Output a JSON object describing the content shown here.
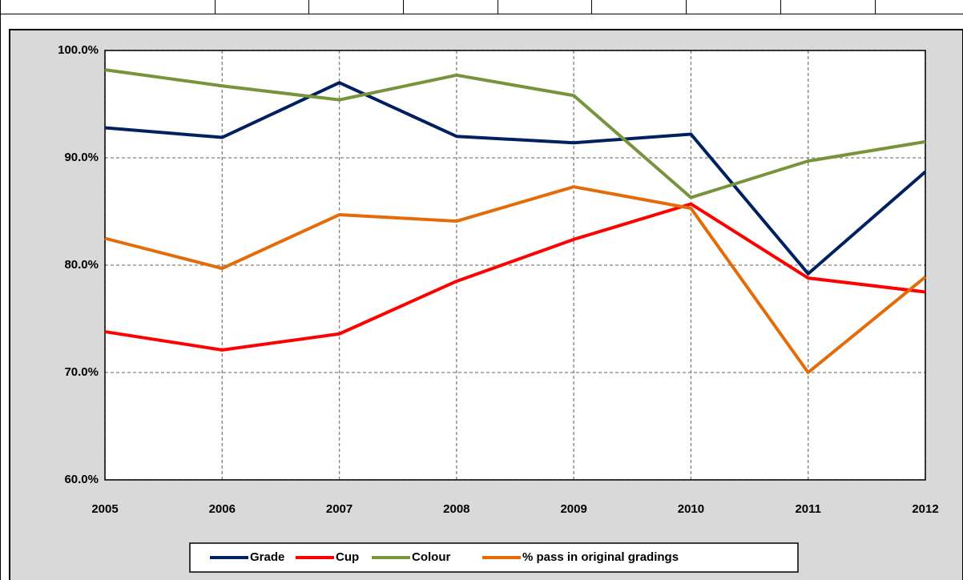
{
  "chart_data": {
    "type": "line",
    "x": [
      2005,
      2006,
      2007,
      2008,
      2009,
      2010,
      2011,
      2012
    ],
    "xlim": [
      2005,
      2012
    ],
    "xticks": [
      2005,
      2006,
      2007,
      2008,
      2009,
      2010,
      2011,
      2012
    ],
    "ylim": [
      60,
      100
    ],
    "yticks": [
      {
        "value": 60,
        "label": "60.0%"
      },
      {
        "value": 70,
        "label": "70.0%"
      },
      {
        "value": 80,
        "label": "80.0%"
      },
      {
        "value": 90,
        "label": "90.0%"
      },
      {
        "value": 100,
        "label": "100.0%"
      }
    ],
    "grid": true,
    "legend": "bottom",
    "series": [
      {
        "name": "Grade",
        "color": "#002060",
        "values": [
          92.8,
          91.9,
          97.0,
          92.0,
          91.4,
          92.2,
          79.2,
          88.7
        ]
      },
      {
        "name": "Cup",
        "color": "#ff0000",
        "values": [
          73.8,
          72.1,
          73.6,
          78.5,
          82.4,
          85.7,
          78.8,
          77.5
        ]
      },
      {
        "name": "Colour",
        "color": "#77933c",
        "values": [
          98.2,
          96.7,
          95.4,
          97.7,
          95.8,
          86.3,
          89.7,
          91.5
        ]
      },
      {
        "name": "% pass in original gradings",
        "color": "#e36c09",
        "values": [
          82.5,
          79.7,
          84.7,
          84.1,
          87.3,
          85.3,
          70.0,
          78.9
        ]
      }
    ]
  }
}
